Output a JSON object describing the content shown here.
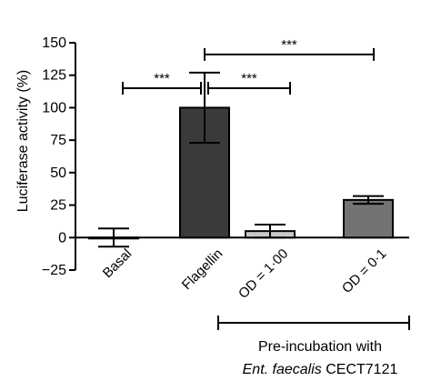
{
  "chart_data": {
    "type": "bar",
    "ylabel": "Luciferase activity (%)",
    "ylim": [
      -25,
      150
    ],
    "yticks": [
      "−25",
      "0",
      "25",
      "50",
      "75",
      "100",
      "125",
      "150"
    ],
    "categories": [
      "Basal",
      "Flagellin",
      "OD = 1·00",
      "OD = 0·1"
    ],
    "values": [
      0,
      100,
      5,
      29
    ],
    "errors": [
      7,
      27,
      5,
      3
    ],
    "bar_colors": [
      "#ffffff",
      "#3a3a3a",
      "#c8c8c8",
      "#737373"
    ],
    "significance": [
      {
        "from": 0,
        "to": 1,
        "y": 115,
        "label": "***"
      },
      {
        "from": 1,
        "to": 2,
        "y": 115,
        "label": "***"
      },
      {
        "from": 1,
        "to": 3,
        "y": 141,
        "label": "***"
      }
    ],
    "group_label": {
      "from": 2,
      "to": 3,
      "line1": "Pre-incubation with",
      "line2_italic": "Ent. faecalis",
      "line2_rest": " CECT7121"
    },
    "grid": false,
    "legend": "none"
  }
}
